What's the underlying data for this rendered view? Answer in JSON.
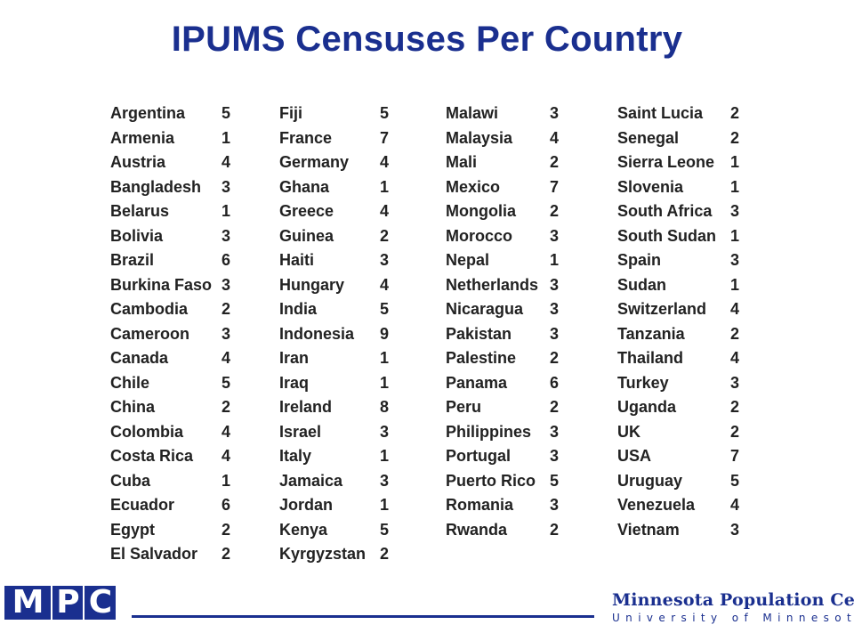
{
  "title": "IPUMS Censuses Per Country",
  "columns": [
    [
      {
        "country": "Argentina",
        "count": "5"
      },
      {
        "country": "Armenia",
        "count": "1"
      },
      {
        "country": "Austria",
        "count": "4"
      },
      {
        "country": "Bangladesh",
        "count": "3"
      },
      {
        "country": "Belarus",
        "count": "1"
      },
      {
        "country": "Bolivia",
        "count": "3"
      },
      {
        "country": "Brazil",
        "count": "6"
      },
      {
        "country": "Burkina Faso",
        "count": "3"
      },
      {
        "country": "Cambodia",
        "count": "2"
      },
      {
        "country": "Cameroon",
        "count": "3"
      },
      {
        "country": "Canada",
        "count": "4"
      },
      {
        "country": "Chile",
        "count": "5"
      },
      {
        "country": "China",
        "count": "2"
      },
      {
        "country": "Colombia",
        "count": "4"
      },
      {
        "country": "Costa Rica",
        "count": "4"
      },
      {
        "country": "Cuba",
        "count": "1"
      },
      {
        "country": "Ecuador",
        "count": "6"
      },
      {
        "country": "Egypt",
        "count": "2"
      },
      {
        "country": "El Salvador",
        "count": "2"
      }
    ],
    [
      {
        "country": "Fiji",
        "count": "5"
      },
      {
        "country": "France",
        "count": "7"
      },
      {
        "country": "Germany",
        "count": "4"
      },
      {
        "country": "Ghana",
        "count": "1"
      },
      {
        "country": "Greece",
        "count": "4"
      },
      {
        "country": "Guinea",
        "count": "2"
      },
      {
        "country": "Haiti",
        "count": "3"
      },
      {
        "country": "Hungary",
        "count": "4"
      },
      {
        "country": "India",
        "count": "5"
      },
      {
        "country": "Indonesia",
        "count": "9"
      },
      {
        "country": "Iran",
        "count": "1"
      },
      {
        "country": "Iraq",
        "count": "1"
      },
      {
        "country": "Ireland",
        "count": "8"
      },
      {
        "country": "Israel",
        "count": "3"
      },
      {
        "country": "Italy",
        "count": "1"
      },
      {
        "country": "Jamaica",
        "count": "3"
      },
      {
        "country": "Jordan",
        "count": "1"
      },
      {
        "country": "Kenya",
        "count": "5"
      },
      {
        "country": "Kyrgyzstan",
        "count": "2"
      }
    ],
    [
      {
        "country": "Malawi",
        "count": "3"
      },
      {
        "country": "Malaysia",
        "count": "4"
      },
      {
        "country": "Mali",
        "count": "2"
      },
      {
        "country": "Mexico",
        "count": "7"
      },
      {
        "country": "Mongolia",
        "count": "2"
      },
      {
        "country": "Morocco",
        "count": "3"
      },
      {
        "country": "Nepal",
        "count": "1"
      },
      {
        "country": "Netherlands",
        "count": "3"
      },
      {
        "country": "Nicaragua",
        "count": "3"
      },
      {
        "country": "Pakistan",
        "count": "3"
      },
      {
        "country": "Palestine",
        "count": "2"
      },
      {
        "country": "Panama",
        "count": "6"
      },
      {
        "country": "Peru",
        "count": "2"
      },
      {
        "country": "Philippines",
        "count": "3"
      },
      {
        "country": "Portugal",
        "count": "3"
      },
      {
        "country": "Puerto Rico",
        "count": "5"
      },
      {
        "country": "Romania",
        "count": "3"
      },
      {
        "country": "Rwanda",
        "count": "2"
      }
    ],
    [
      {
        "country": "Saint Lucia",
        "count": "2"
      },
      {
        "country": "Senegal",
        "count": "2"
      },
      {
        "country": "Sierra Leone",
        "count": "1"
      },
      {
        "country": "Slovenia",
        "count": "1"
      },
      {
        "country": "South Africa",
        "count": "3"
      },
      {
        "country": "South Sudan",
        "count": "1"
      },
      {
        "country": "Spain",
        "count": "3"
      },
      {
        "country": "Sudan",
        "count": "1"
      },
      {
        "country": "Switzerland",
        "count": "4"
      },
      {
        "country": "Tanzania",
        "count": "2"
      },
      {
        "country": "Thailand",
        "count": "4"
      },
      {
        "country": "Turkey",
        "count": "3"
      },
      {
        "country": "Uganda",
        "count": "2"
      },
      {
        "country": "UK",
        "count": "2"
      },
      {
        "country": "USA",
        "count": "7"
      },
      {
        "country": "Uruguay",
        "count": "5"
      },
      {
        "country": "Venezuela",
        "count": "4"
      },
      {
        "country": "Vietnam",
        "count": "3"
      }
    ]
  ],
  "footer": {
    "logo_letters": [
      "M",
      "P",
      "C"
    ],
    "org_name": "Minnesota Population Center",
    "org_sub": "University of Minnesota"
  },
  "colors": {
    "brand": "#1a2f8f",
    "text": "#222222"
  }
}
